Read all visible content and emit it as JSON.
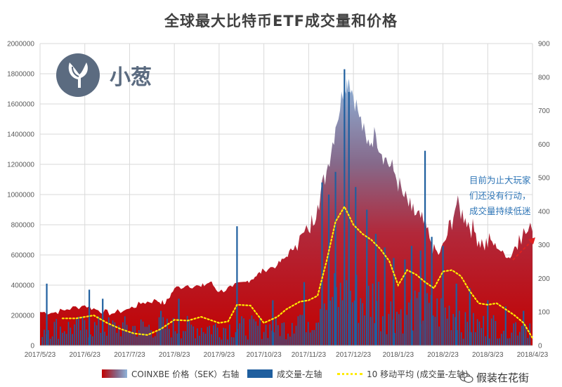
{
  "chart_data": {
    "type": "bar+area+line",
    "title": "全球最大比特币ETF成交量和价格",
    "left_axis": {
      "min": 0,
      "max": 2000000,
      "ticks": [
        "0",
        "200000",
        "400000",
        "600000",
        "800000",
        "1000000",
        "1200000",
        "1400000",
        "1600000",
        "1800000",
        "2000000"
      ]
    },
    "right_axis": {
      "min": 0,
      "max": 900,
      "ticks": [
        "0",
        "100",
        "200",
        "300",
        "400",
        "500",
        "600",
        "700",
        "800",
        "900"
      ]
    },
    "x_ticks": [
      "2017/5/23",
      "2017/6/23",
      "2017/7/23",
      "2017/8/23",
      "2017/9/23",
      "2017/10/23",
      "2017/11/23",
      "2017/12/23",
      "2018/1/23",
      "2018/2/23",
      "2018/3/23",
      "2018/4/23"
    ],
    "x_range_months": [
      0,
      11
    ],
    "price_series": {
      "name": "COINXBE 价格（SEK）右轴",
      "axis": "right",
      "points": [
        [
          0,
          100
        ],
        [
          0.3,
          98
        ],
        [
          0.6,
          108
        ],
        [
          1.0,
          120
        ],
        [
          1.3,
          105
        ],
        [
          1.6,
          95
        ],
        [
          2.0,
          110
        ],
        [
          2.3,
          128
        ],
        [
          2.6,
          135
        ],
        [
          2.8,
          125
        ],
        [
          3.0,
          170
        ],
        [
          3.3,
          180
        ],
        [
          3.6,
          175
        ],
        [
          3.8,
          190
        ],
        [
          4.0,
          160
        ],
        [
          4.3,
          175
        ],
        [
          4.6,
          190
        ],
        [
          4.8,
          205
        ],
        [
          5.0,
          225
        ],
        [
          5.3,
          240
        ],
        [
          5.5,
          265
        ],
        [
          5.7,
          300
        ],
        [
          6.0,
          340
        ],
        [
          6.2,
          420
        ],
        [
          6.4,
          520
        ],
        [
          6.6,
          650
        ],
        [
          6.8,
          780
        ],
        [
          6.9,
          795
        ],
        [
          7.1,
          700
        ],
        [
          7.3,
          600
        ],
        [
          7.5,
          630
        ],
        [
          7.7,
          560
        ],
        [
          7.9,
          520
        ],
        [
          8.1,
          450
        ],
        [
          8.3,
          400
        ],
        [
          8.5,
          380
        ],
        [
          8.7,
          320
        ],
        [
          8.9,
          270
        ],
        [
          9.1,
          330
        ],
        [
          9.3,
          420
        ],
        [
          9.5,
          380
        ],
        [
          9.7,
          340
        ],
        [
          9.9,
          300
        ],
        [
          10.1,
          310
        ],
        [
          10.3,
          280
        ],
        [
          10.5,
          260
        ],
        [
          10.7,
          330
        ],
        [
          11.0,
          340
        ]
      ]
    },
    "volume_series": {
      "name": "成交量-左轴",
      "axis": "left",
      "spikes": [
        [
          0.15,
          410000
        ],
        [
          1.1,
          370000
        ],
        [
          1.4,
          310000
        ],
        [
          2.7,
          230000
        ],
        [
          3.1,
          310000
        ],
        [
          4.4,
          790000
        ],
        [
          5.2,
          300000
        ],
        [
          5.9,
          420000
        ],
        [
          6.3,
          1080000
        ],
        [
          6.45,
          1000000
        ],
        [
          6.6,
          1150000
        ],
        [
          6.8,
          1830000
        ],
        [
          6.9,
          1680000
        ],
        [
          7.05,
          1050000
        ],
        [
          7.3,
          900000
        ],
        [
          7.5,
          740000
        ],
        [
          7.7,
          650000
        ],
        [
          7.9,
          580000
        ],
        [
          8.15,
          570000
        ],
        [
          8.3,
          660000
        ],
        [
          8.5,
          630000
        ],
        [
          8.6,
          1290000
        ],
        [
          8.75,
          720000
        ],
        [
          9.0,
          660000
        ],
        [
          9.3,
          410000
        ],
        [
          9.6,
          380000
        ],
        [
          10.0,
          300000
        ],
        [
          10.4,
          260000
        ],
        [
          10.8,
          230000
        ]
      ],
      "baseline_level": 160000
    },
    "ma_series": {
      "name": "10 移动平均 (成交量-左轴)",
      "axis": "left",
      "points": [
        [
          0.5,
          180000
        ],
        [
          0.8,
          180000
        ],
        [
          1.2,
          200000
        ],
        [
          1.5,
          150000
        ],
        [
          1.8,
          110000
        ],
        [
          2.1,
          80000
        ],
        [
          2.4,
          70000
        ],
        [
          2.7,
          110000
        ],
        [
          3.0,
          170000
        ],
        [
          3.3,
          165000
        ],
        [
          3.6,
          190000
        ],
        [
          4.0,
          150000
        ],
        [
          4.2,
          160000
        ],
        [
          4.4,
          270000
        ],
        [
          4.7,
          265000
        ],
        [
          5.0,
          150000
        ],
        [
          5.3,
          190000
        ],
        [
          5.5,
          240000
        ],
        [
          5.8,
          290000
        ],
        [
          6.0,
          300000
        ],
        [
          6.2,
          330000
        ],
        [
          6.4,
          560000
        ],
        [
          6.6,
          820000
        ],
        [
          6.8,
          920000
        ],
        [
          7.0,
          800000
        ],
        [
          7.2,
          740000
        ],
        [
          7.4,
          700000
        ],
        [
          7.6,
          640000
        ],
        [
          7.8,
          560000
        ],
        [
          8.0,
          400000
        ],
        [
          8.2,
          500000
        ],
        [
          8.4,
          470000
        ],
        [
          8.6,
          420000
        ],
        [
          8.8,
          380000
        ],
        [
          9.0,
          490000
        ],
        [
          9.2,
          500000
        ],
        [
          9.4,
          460000
        ],
        [
          9.6,
          360000
        ],
        [
          9.8,
          280000
        ],
        [
          10.0,
          270000
        ],
        [
          10.2,
          280000
        ],
        [
          10.4,
          240000
        ],
        [
          10.6,
          200000
        ],
        [
          10.8,
          150000
        ],
        [
          11.0,
          50000
        ]
      ]
    }
  },
  "logo": {
    "text": "小葱"
  },
  "annotation": {
    "lines": [
      "目前为止大玩家",
      "们还没有行动，",
      "成交量持续低迷"
    ]
  },
  "legend": {
    "price": "COINXBE 价格（SEK）右轴",
    "volume": "成交量-左轴",
    "ma": "10 移动平均 (成交量-左轴)"
  },
  "watermark": {
    "text": "假装在花街"
  },
  "colors": {
    "price_top": "#8fb4da",
    "price_bottom": "#c00000",
    "volume": "#1f5f9f",
    "ma": "#ffeb00",
    "arrow": "#e02020",
    "annotation": "#2e75b6"
  }
}
